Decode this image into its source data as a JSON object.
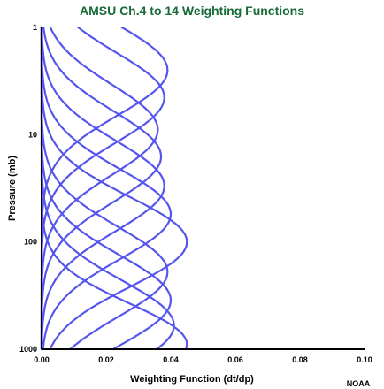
{
  "chart_data": {
    "type": "line",
    "title": "AMSU Ch.4 to 14 Weighting Functions",
    "xlabel": "Weighting Function (dt/dp)",
    "ylabel": "Pressure (mb)",
    "xlim": [
      0,
      0.1
    ],
    "ylim": [
      1000,
      1
    ],
    "y_scale": "log",
    "x_ticks": [
      "0.00",
      "0.02",
      "0.04",
      "0.06",
      "0.08",
      "0.10"
    ],
    "y_ticks": [
      "1",
      "10",
      "100",
      "1000"
    ],
    "grid": false,
    "legend": "none",
    "colors": {
      "title": "#1a6b3a",
      "series": "#5555ee",
      "axis": "#000000"
    },
    "series": [
      {
        "peak_pressure": 2.5,
        "peak_value": 0.039,
        "spread": 0.42
      },
      {
        "peak_pressure": 4.5,
        "peak_value": 0.038,
        "spread": 0.42
      },
      {
        "peak_pressure": 9,
        "peak_value": 0.036,
        "spread": 0.42
      },
      {
        "peak_pressure": 16,
        "peak_value": 0.037,
        "spread": 0.42
      },
      {
        "peak_pressure": 30,
        "peak_value": 0.038,
        "spread": 0.42
      },
      {
        "peak_pressure": 55,
        "peak_value": 0.04,
        "spread": 0.42
      },
      {
        "peak_pressure": 100,
        "peak_value": 0.045,
        "spread": 0.42
      },
      {
        "peak_pressure": 190,
        "peak_value": 0.039,
        "spread": 0.42
      },
      {
        "peak_pressure": 350,
        "peak_value": 0.04,
        "spread": 0.42
      },
      {
        "peak_pressure": 600,
        "peak_value": 0.041,
        "spread": 0.42
      },
      {
        "peak_pressure": 900,
        "peak_value": 0.045,
        "spread": 0.38
      }
    ]
  },
  "credit": "NOAA"
}
